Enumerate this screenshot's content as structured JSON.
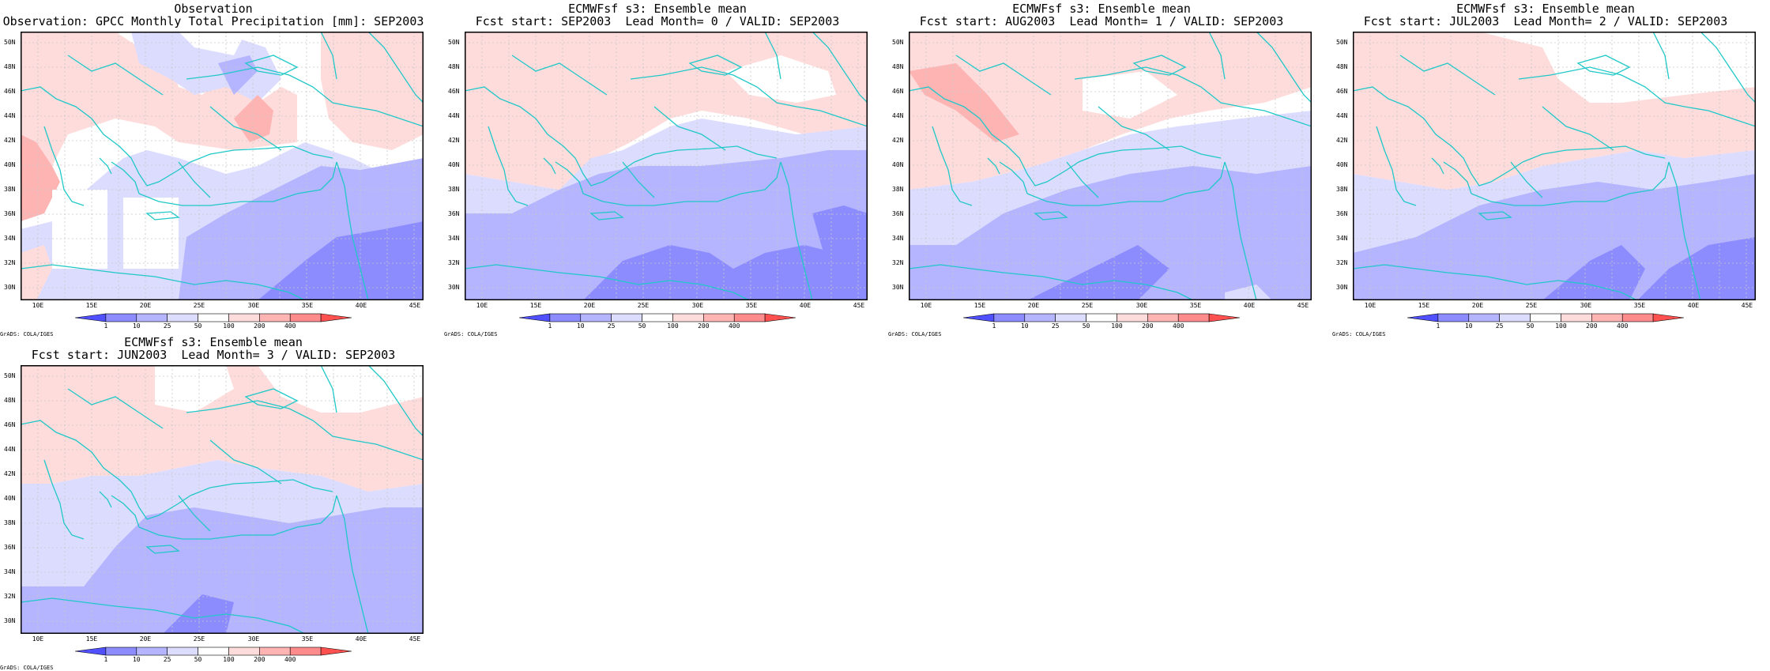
{
  "panels": [
    {
      "title1": "Observation",
      "title2": "Observation: GPCC Monthly Total Precipitation [mm]: SEP2003",
      "variant": "obs"
    },
    {
      "title1": "ECMWFsf s3: Ensemble mean",
      "title2": "Fcst start: SEP2003  Lead Month= 0 / VALID: SEP2003",
      "variant": "l0"
    },
    {
      "title1": "ECMWFsf s3: Ensemble mean",
      "title2": "Fcst start: AUG2003  Lead Month= 1 / VALID: SEP2003",
      "variant": "l1"
    },
    {
      "title1": "ECMWFsf s3: Ensemble mean",
      "title2": "Fcst start: JUL2003  Lead Month= 2 / VALID: SEP2003",
      "variant": "l2"
    },
    {
      "title1": "ECMWFsf s3: Ensemble mean",
      "title2": "Fcst start: JUN2003  Lead Month= 3 / VALID: SEP2003",
      "variant": "l3"
    }
  ],
  "lat_labels": [
    "50N",
    "48N",
    "46N",
    "44N",
    "42N",
    "40N",
    "38N",
    "36N",
    "34N",
    "32N",
    "30N"
  ],
  "lon_labels": [
    "10E",
    "15E",
    "20E",
    "25E",
    "30E",
    "35E",
    "40E",
    "45E"
  ],
  "colorbar": {
    "labels": [
      "1",
      "10",
      "25",
      "50",
      "100",
      "200",
      "400"
    ],
    "colors": [
      "#5050ff",
      "#8c8cff",
      "#b4b4ff",
      "#dcdcff",
      "#ffffff",
      "#ffdcdc",
      "#ffb4b4",
      "#ff8c8c",
      "#ff5050"
    ]
  },
  "credit": "GrADS: COLA/IGES",
  "colors": {
    "coast": "#20c8c8",
    "grid": "#c8c8c8",
    "frame": "#000000"
  }
}
